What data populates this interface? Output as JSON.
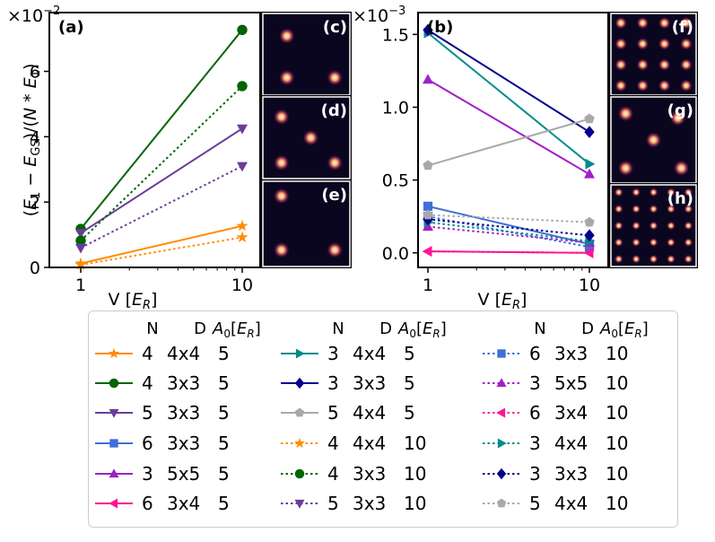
{
  "chart_data": [
    {
      "type": "line",
      "panel_label": "(a)",
      "xscale": "log",
      "xlabel": "V [",
      "xlabel_unit": "E",
      "xlabel_sub": "R",
      "xlabel_close": "]",
      "xticks": [
        1,
        10
      ],
      "xtick_labels": [
        "1",
        "10"
      ],
      "ylabel": "(E1 − EGS)/(N*E1)",
      "y_multiplier_text": "×10",
      "y_multiplier_exp": "−2",
      "ylim": [
        0,
        0.078
      ],
      "yticks": [
        0,
        0.02,
        0.04,
        0.06
      ],
      "ytick_labels": [
        "0",
        "2",
        "4",
        "6"
      ],
      "x": [
        1,
        10
      ],
      "series": [
        {
          "name": "4 4x4 5",
          "color": "#ff8c00",
          "marker": "star",
          "dash": false,
          "values": [
            0.0012,
            0.0127
          ]
        },
        {
          "name": "4 3x3 5",
          "color": "#006400",
          "marker": "circle",
          "dash": false,
          "values": [
            0.0118,
            0.0727
          ]
        },
        {
          "name": "5 3x3 5",
          "color": "#6a3d9a",
          "marker": "tri-down",
          "dash": false,
          "values": [
            0.0105,
            0.0425
          ]
        },
        {
          "name": "4 4x4 10",
          "color": "#ff8c00",
          "marker": "star",
          "dash": true,
          "values": [
            0.0008,
            0.0092
          ]
        },
        {
          "name": "4 3x3 10",
          "color": "#006400",
          "marker": "circle",
          "dash": true,
          "values": [
            0.0082,
            0.0555
          ]
        },
        {
          "name": "5 3x3 10",
          "color": "#6a3d9a",
          "marker": "tri-down",
          "dash": true,
          "values": [
            0.006,
            0.031
          ]
        }
      ]
    },
    {
      "type": "line",
      "panel_label": "(b)",
      "xscale": "log",
      "xlabel": "V [",
      "xlabel_unit": "E",
      "xlabel_sub": "R",
      "xlabel_close": "]",
      "xticks": [
        1,
        10
      ],
      "xtick_labels": [
        "1",
        "10"
      ],
      "y_multiplier_text": "×10",
      "y_multiplier_exp": "−3",
      "ylim": [
        -0.0001,
        0.00165
      ],
      "yticks": [
        0,
        0.0005,
        0.001,
        0.0015
      ],
      "ytick_labels": [
        "0.0",
        "0.5",
        "1.0",
        "1.5"
      ],
      "x": [
        1,
        10
      ],
      "series": [
        {
          "name": "6 3x3 5",
          "color": "#3f6fd8",
          "marker": "square",
          "dash": false,
          "values": [
            0.00032,
            6e-05
          ]
        },
        {
          "name": "3 5x5 5",
          "color": "#a020c8",
          "marker": "tri-up",
          "dash": false,
          "values": [
            0.00119,
            0.00054
          ]
        },
        {
          "name": "6 3x4 5",
          "color": "#ff1493",
          "marker": "tri-left",
          "dash": false,
          "values": [
            1e-05,
            0.0
          ]
        },
        {
          "name": "3 4x4 5",
          "color": "#008b8b",
          "marker": "tri-right",
          "dash": false,
          "values": [
            0.00151,
            0.00061
          ]
        },
        {
          "name": "3 3x3 5",
          "color": "#00008b",
          "marker": "diamond",
          "dash": false,
          "values": [
            0.00153,
            0.00083
          ]
        },
        {
          "name": "5 4x4 5",
          "color": "#a9a9a9",
          "marker": "pentagon",
          "dash": false,
          "values": [
            0.0006,
            0.00092
          ]
        },
        {
          "name": "6 3x3 10",
          "color": "#3f6fd8",
          "marker": "square",
          "dash": true,
          "values": [
            0.00025,
            4e-05
          ]
        },
        {
          "name": "3 5x5 10",
          "color": "#a020c8",
          "marker": "tri-up",
          "dash": true,
          "values": [
            0.00018,
            7e-05
          ]
        },
        {
          "name": "6 3x4 10",
          "color": "#ff1493",
          "marker": "tri-left",
          "dash": true,
          "values": [
            1e-05,
            0.0
          ]
        },
        {
          "name": "3 4x4 10",
          "color": "#008b8b",
          "marker": "tri-right",
          "dash": true,
          "values": [
            0.00021,
            8e-05
          ]
        },
        {
          "name": "3 3x3 10",
          "color": "#00008b",
          "marker": "diamond",
          "dash": true,
          "values": [
            0.00023,
            0.00012
          ]
        },
        {
          "name": "5 4x4 10",
          "color": "#a9a9a9",
          "marker": "pentagon",
          "dash": true,
          "values": [
            0.00026,
            0.00021
          ]
        }
      ]
    }
  ],
  "insets": [
    {
      "label": "(c)",
      "spots": [
        [
          0.28,
          0.28
        ],
        [
          0.28,
          0.78
        ],
        [
          0.82,
          0.78
        ]
      ]
    },
    {
      "label": "(d)",
      "spots": [
        [
          0.22,
          0.25
        ],
        [
          0.55,
          0.5
        ],
        [
          0.22,
          0.8
        ],
        [
          0.82,
          0.8
        ]
      ]
    },
    {
      "label": "(e)",
      "spots": [
        [
          0.22,
          0.18
        ],
        [
          0.22,
          0.8
        ],
        [
          0.82,
          0.8
        ]
      ]
    },
    {
      "label": "(f)",
      "grid": [
        4,
        4
      ]
    },
    {
      "label": "(g)",
      "spots": [
        [
          0.18,
          0.2
        ],
        [
          0.18,
          0.82
        ],
        [
          0.82,
          0.82
        ],
        [
          0.78,
          0.25
        ],
        [
          0.5,
          0.5
        ]
      ]
    },
    {
      "label": "(h)",
      "grid": [
        5,
        5
      ]
    }
  ],
  "legend": {
    "header": {
      "n": "N",
      "d": "D",
      "a0": "A",
      "a0_sub": "0",
      "a0_rest": "[E",
      "a0_unit_sub": "R",
      "a0_close": "]"
    },
    "columns": [
      [
        {
          "n": "4",
          "d": "4x4",
          "a0": "5",
          "color": "#ff8c00",
          "marker": "star",
          "dash": false
        },
        {
          "n": "4",
          "d": "3x3",
          "a0": "5",
          "color": "#006400",
          "marker": "circle",
          "dash": false
        },
        {
          "n": "5",
          "d": "3x3",
          "a0": "5",
          "color": "#6a3d9a",
          "marker": "tri-down",
          "dash": false
        },
        {
          "n": "6",
          "d": "3x3",
          "a0": "5",
          "color": "#3f6fd8",
          "marker": "square",
          "dash": false
        },
        {
          "n": "3",
          "d": "5x5",
          "a0": "5",
          "color": "#a020c8",
          "marker": "tri-up",
          "dash": false
        },
        {
          "n": "6",
          "d": "3x4",
          "a0": "5",
          "color": "#ff1493",
          "marker": "tri-left",
          "dash": false
        }
      ],
      [
        {
          "n": "3",
          "d": "4x4",
          "a0": "5",
          "color": "#008b8b",
          "marker": "tri-right",
          "dash": false
        },
        {
          "n": "3",
          "d": "3x3",
          "a0": "5",
          "color": "#00008b",
          "marker": "diamond",
          "dash": false
        },
        {
          "n": "5",
          "d": "4x4",
          "a0": "5",
          "color": "#a9a9a9",
          "marker": "pentagon",
          "dash": false
        },
        {
          "n": "4",
          "d": "4x4",
          "a0": "10",
          "color": "#ff8c00",
          "marker": "star",
          "dash": true
        },
        {
          "n": "4",
          "d": "3x3",
          "a0": "10",
          "color": "#006400",
          "marker": "circle",
          "dash": true
        },
        {
          "n": "5",
          "d": "3x3",
          "a0": "10",
          "color": "#6a3d9a",
          "marker": "tri-down",
          "dash": true
        }
      ],
      [
        {
          "n": "6",
          "d": "3x3",
          "a0": "10",
          "color": "#3f6fd8",
          "marker": "square",
          "dash": true
        },
        {
          "n": "3",
          "d": "5x5",
          "a0": "10",
          "color": "#a020c8",
          "marker": "tri-up",
          "dash": true
        },
        {
          "n": "6",
          "d": "3x4",
          "a0": "10",
          "color": "#ff1493",
          "marker": "tri-left",
          "dash": true
        },
        {
          "n": "3",
          "d": "4x4",
          "a0": "10",
          "color": "#008b8b",
          "marker": "tri-right",
          "dash": true
        },
        {
          "n": "3",
          "d": "3x3",
          "a0": "10",
          "color": "#00008b",
          "marker": "diamond",
          "dash": true
        },
        {
          "n": "5",
          "d": "4x4",
          "a0": "10",
          "color": "#a9a9a9",
          "marker": "pentagon",
          "dash": true
        }
      ]
    ]
  }
}
